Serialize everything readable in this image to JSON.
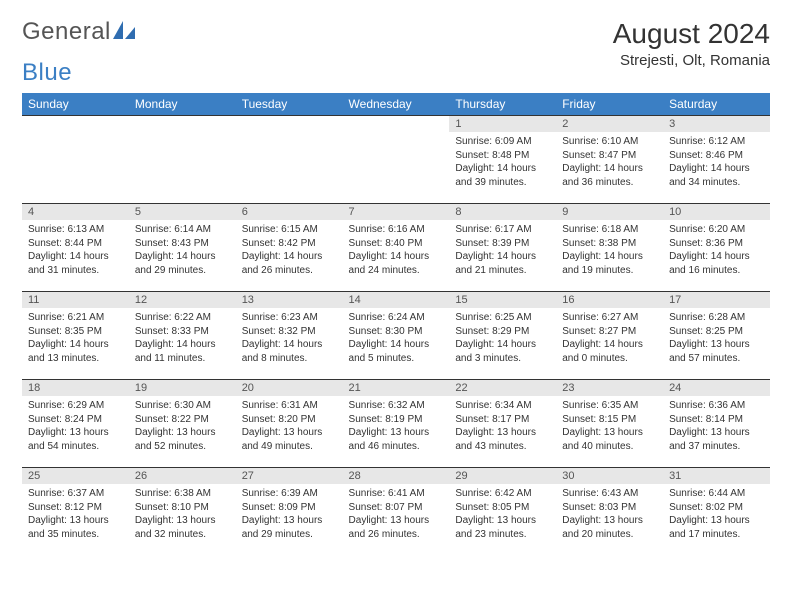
{
  "brand": {
    "word1": "General",
    "word2": "Blue"
  },
  "title": "August 2024",
  "location": "Strejesti, Olt, Romania",
  "colors": {
    "header_bg": "#3b7fc4",
    "daynum_bg": "#e7e7e7",
    "text": "#333333",
    "page_bg": "#ffffff"
  },
  "weekdays": [
    "Sunday",
    "Monday",
    "Tuesday",
    "Wednesday",
    "Thursday",
    "Friday",
    "Saturday"
  ],
  "weeks": [
    [
      {
        "n": "",
        "sr": "",
        "ss": "",
        "dl": "",
        "empty": true
      },
      {
        "n": "",
        "sr": "",
        "ss": "",
        "dl": "",
        "empty": true
      },
      {
        "n": "",
        "sr": "",
        "ss": "",
        "dl": "",
        "empty": true
      },
      {
        "n": "",
        "sr": "",
        "ss": "",
        "dl": "",
        "empty": true
      },
      {
        "n": "1",
        "sr": "Sunrise: 6:09 AM",
        "ss": "Sunset: 8:48 PM",
        "dl": "Daylight: 14 hours and 39 minutes."
      },
      {
        "n": "2",
        "sr": "Sunrise: 6:10 AM",
        "ss": "Sunset: 8:47 PM",
        "dl": "Daylight: 14 hours and 36 minutes."
      },
      {
        "n": "3",
        "sr": "Sunrise: 6:12 AM",
        "ss": "Sunset: 8:46 PM",
        "dl": "Daylight: 14 hours and 34 minutes."
      }
    ],
    [
      {
        "n": "4",
        "sr": "Sunrise: 6:13 AM",
        "ss": "Sunset: 8:44 PM",
        "dl": "Daylight: 14 hours and 31 minutes."
      },
      {
        "n": "5",
        "sr": "Sunrise: 6:14 AM",
        "ss": "Sunset: 8:43 PM",
        "dl": "Daylight: 14 hours and 29 minutes."
      },
      {
        "n": "6",
        "sr": "Sunrise: 6:15 AM",
        "ss": "Sunset: 8:42 PM",
        "dl": "Daylight: 14 hours and 26 minutes."
      },
      {
        "n": "7",
        "sr": "Sunrise: 6:16 AM",
        "ss": "Sunset: 8:40 PM",
        "dl": "Daylight: 14 hours and 24 minutes."
      },
      {
        "n": "8",
        "sr": "Sunrise: 6:17 AM",
        "ss": "Sunset: 8:39 PM",
        "dl": "Daylight: 14 hours and 21 minutes."
      },
      {
        "n": "9",
        "sr": "Sunrise: 6:18 AM",
        "ss": "Sunset: 8:38 PM",
        "dl": "Daylight: 14 hours and 19 minutes."
      },
      {
        "n": "10",
        "sr": "Sunrise: 6:20 AM",
        "ss": "Sunset: 8:36 PM",
        "dl": "Daylight: 14 hours and 16 minutes."
      }
    ],
    [
      {
        "n": "11",
        "sr": "Sunrise: 6:21 AM",
        "ss": "Sunset: 8:35 PM",
        "dl": "Daylight: 14 hours and 13 minutes."
      },
      {
        "n": "12",
        "sr": "Sunrise: 6:22 AM",
        "ss": "Sunset: 8:33 PM",
        "dl": "Daylight: 14 hours and 11 minutes."
      },
      {
        "n": "13",
        "sr": "Sunrise: 6:23 AM",
        "ss": "Sunset: 8:32 PM",
        "dl": "Daylight: 14 hours and 8 minutes."
      },
      {
        "n": "14",
        "sr": "Sunrise: 6:24 AM",
        "ss": "Sunset: 8:30 PM",
        "dl": "Daylight: 14 hours and 5 minutes."
      },
      {
        "n": "15",
        "sr": "Sunrise: 6:25 AM",
        "ss": "Sunset: 8:29 PM",
        "dl": "Daylight: 14 hours and 3 minutes."
      },
      {
        "n": "16",
        "sr": "Sunrise: 6:27 AM",
        "ss": "Sunset: 8:27 PM",
        "dl": "Daylight: 14 hours and 0 minutes."
      },
      {
        "n": "17",
        "sr": "Sunrise: 6:28 AM",
        "ss": "Sunset: 8:25 PM",
        "dl": "Daylight: 13 hours and 57 minutes."
      }
    ],
    [
      {
        "n": "18",
        "sr": "Sunrise: 6:29 AM",
        "ss": "Sunset: 8:24 PM",
        "dl": "Daylight: 13 hours and 54 minutes."
      },
      {
        "n": "19",
        "sr": "Sunrise: 6:30 AM",
        "ss": "Sunset: 8:22 PM",
        "dl": "Daylight: 13 hours and 52 minutes."
      },
      {
        "n": "20",
        "sr": "Sunrise: 6:31 AM",
        "ss": "Sunset: 8:20 PM",
        "dl": "Daylight: 13 hours and 49 minutes."
      },
      {
        "n": "21",
        "sr": "Sunrise: 6:32 AM",
        "ss": "Sunset: 8:19 PM",
        "dl": "Daylight: 13 hours and 46 minutes."
      },
      {
        "n": "22",
        "sr": "Sunrise: 6:34 AM",
        "ss": "Sunset: 8:17 PM",
        "dl": "Daylight: 13 hours and 43 minutes."
      },
      {
        "n": "23",
        "sr": "Sunrise: 6:35 AM",
        "ss": "Sunset: 8:15 PM",
        "dl": "Daylight: 13 hours and 40 minutes."
      },
      {
        "n": "24",
        "sr": "Sunrise: 6:36 AM",
        "ss": "Sunset: 8:14 PM",
        "dl": "Daylight: 13 hours and 37 minutes."
      }
    ],
    [
      {
        "n": "25",
        "sr": "Sunrise: 6:37 AM",
        "ss": "Sunset: 8:12 PM",
        "dl": "Daylight: 13 hours and 35 minutes."
      },
      {
        "n": "26",
        "sr": "Sunrise: 6:38 AM",
        "ss": "Sunset: 8:10 PM",
        "dl": "Daylight: 13 hours and 32 minutes."
      },
      {
        "n": "27",
        "sr": "Sunrise: 6:39 AM",
        "ss": "Sunset: 8:09 PM",
        "dl": "Daylight: 13 hours and 29 minutes."
      },
      {
        "n": "28",
        "sr": "Sunrise: 6:41 AM",
        "ss": "Sunset: 8:07 PM",
        "dl": "Daylight: 13 hours and 26 minutes."
      },
      {
        "n": "29",
        "sr": "Sunrise: 6:42 AM",
        "ss": "Sunset: 8:05 PM",
        "dl": "Daylight: 13 hours and 23 minutes."
      },
      {
        "n": "30",
        "sr": "Sunrise: 6:43 AM",
        "ss": "Sunset: 8:03 PM",
        "dl": "Daylight: 13 hours and 20 minutes."
      },
      {
        "n": "31",
        "sr": "Sunrise: 6:44 AM",
        "ss": "Sunset: 8:02 PM",
        "dl": "Daylight: 13 hours and 17 minutes."
      }
    ]
  ]
}
